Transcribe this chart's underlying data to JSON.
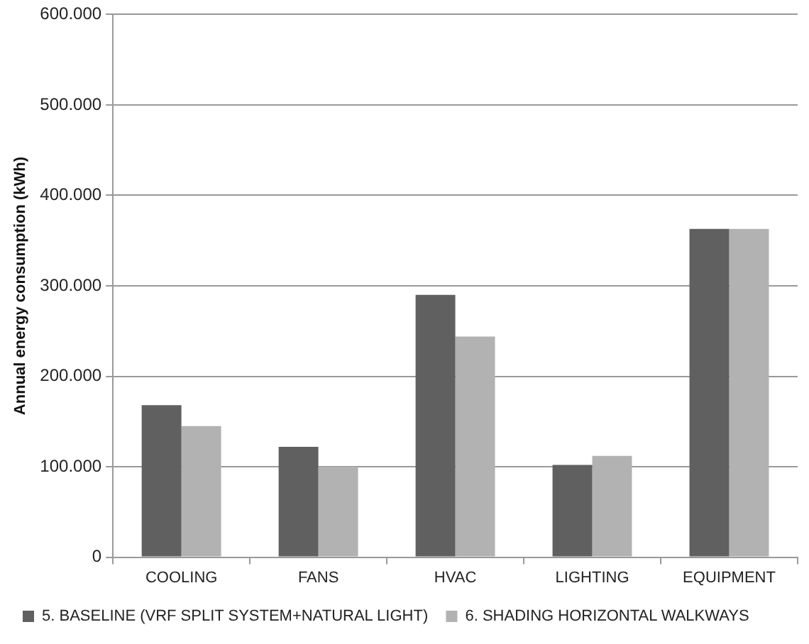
{
  "chart_data": {
    "type": "bar",
    "ylabel": "Annual energy consumption (kWh)",
    "categories": [
      "COOLING",
      "FANS",
      "HVAC",
      "LIGHTING",
      "EQUIPMENT"
    ],
    "series": [
      {
        "name": "5. BASELINE (VRF SPLIT SYSTEM+NATURAL LIGHT)",
        "color": "#606060",
        "values": [
          168000,
          122000,
          290000,
          102000,
          363000
        ]
      },
      {
        "name": "6. SHADING HORIZONTAL WALKWAYS",
        "color": "#b2b2b2",
        "values": [
          145000,
          100000,
          244000,
          112000,
          363000
        ]
      }
    ],
    "ylim": [
      0,
      600000
    ],
    "yticks": [
      0,
      {
        "value": 100000,
        "label": "100.000"
      },
      {
        "value": 200000,
        "label": "200.000"
      },
      {
        "value": 300000,
        "label": "300.000"
      },
      {
        "value": 400000,
        "label": "400.000"
      },
      {
        "value": 500000,
        "label": "500.000"
      },
      {
        "value": 600000,
        "label": "600.000"
      }
    ],
    "grid": "y",
    "legend": "bottom"
  }
}
